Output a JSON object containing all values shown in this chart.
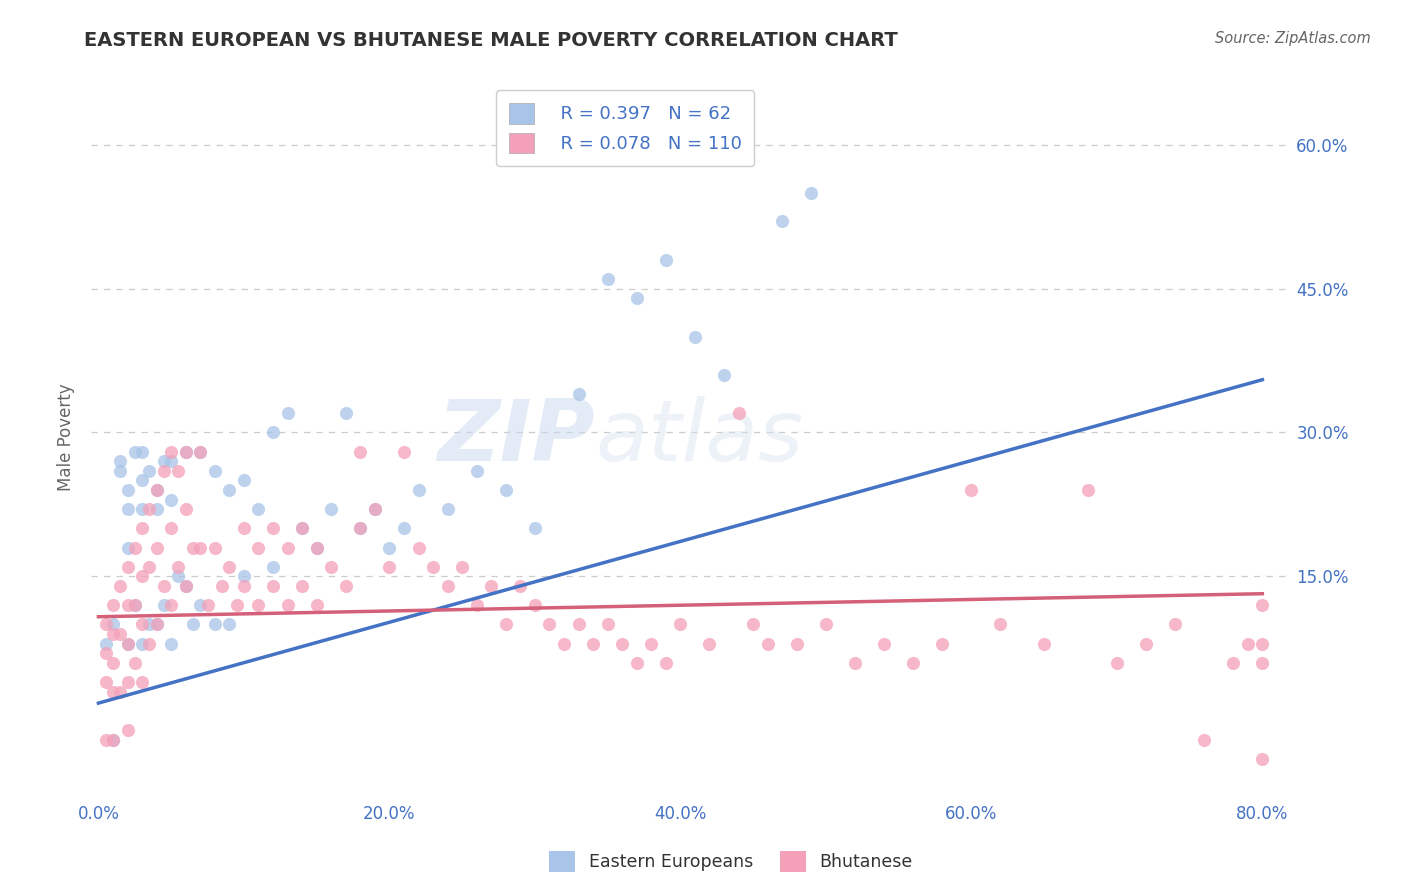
{
  "title": "EASTERN EUROPEAN VS BHUTANESE MALE POVERTY CORRELATION CHART",
  "source": "Source: ZipAtlas.com",
  "xlabel_ticks": [
    "0.0%",
    "20.0%",
    "40.0%",
    "60.0%",
    "80.0%"
  ],
  "xlabel_vals": [
    0.0,
    0.2,
    0.4,
    0.6,
    0.8
  ],
  "ylabel_ticks": [
    "15.0%",
    "30.0%",
    "45.0%",
    "60.0%"
  ],
  "ylabel_vals": [
    0.15,
    0.3,
    0.45,
    0.6
  ],
  "xlim": [
    -0.005,
    0.82
  ],
  "ylim": [
    -0.08,
    0.67
  ],
  "series1_label": "Eastern Europeans",
  "series1_color": "#a8c4e8",
  "series1_R": 0.397,
  "series1_N": 62,
  "series1_line_color": "#4472C4",
  "series1_x": [
    0.005,
    0.01,
    0.01,
    0.015,
    0.015,
    0.02,
    0.02,
    0.02,
    0.02,
    0.025,
    0.025,
    0.03,
    0.03,
    0.03,
    0.03,
    0.035,
    0.035,
    0.04,
    0.04,
    0.04,
    0.045,
    0.045,
    0.05,
    0.05,
    0.05,
    0.055,
    0.06,
    0.06,
    0.065,
    0.07,
    0.07,
    0.08,
    0.08,
    0.09,
    0.09,
    0.1,
    0.1,
    0.11,
    0.12,
    0.12,
    0.13,
    0.14,
    0.15,
    0.16,
    0.17,
    0.18,
    0.19,
    0.2,
    0.21,
    0.22,
    0.24,
    0.26,
    0.28,
    0.3,
    0.33,
    0.35,
    0.37,
    0.39,
    0.41,
    0.43,
    0.47,
    0.49
  ],
  "series1_y": [
    0.08,
    0.1,
    -0.02,
    0.27,
    0.26,
    0.24,
    0.22,
    0.18,
    0.08,
    0.28,
    0.12,
    0.28,
    0.25,
    0.22,
    0.08,
    0.26,
    0.1,
    0.24,
    0.22,
    0.1,
    0.27,
    0.12,
    0.27,
    0.23,
    0.08,
    0.15,
    0.28,
    0.14,
    0.1,
    0.28,
    0.12,
    0.26,
    0.1,
    0.24,
    0.1,
    0.25,
    0.15,
    0.22,
    0.3,
    0.16,
    0.32,
    0.2,
    0.18,
    0.22,
    0.32,
    0.2,
    0.22,
    0.18,
    0.2,
    0.24,
    0.22,
    0.26,
    0.24,
    0.2,
    0.34,
    0.46,
    0.44,
    0.48,
    0.4,
    0.36,
    0.52,
    0.55
  ],
  "series2_label": "Bhutanese",
  "series2_color": "#f4a0b8",
  "series2_R": 0.078,
  "series2_N": 110,
  "series2_line_color": "#d4607a",
  "series2_x": [
    0.005,
    0.005,
    0.005,
    0.005,
    0.01,
    0.01,
    0.01,
    0.01,
    0.01,
    0.015,
    0.015,
    0.015,
    0.02,
    0.02,
    0.02,
    0.02,
    0.02,
    0.025,
    0.025,
    0.025,
    0.03,
    0.03,
    0.03,
    0.03,
    0.035,
    0.035,
    0.035,
    0.04,
    0.04,
    0.04,
    0.045,
    0.045,
    0.05,
    0.05,
    0.05,
    0.055,
    0.055,
    0.06,
    0.06,
    0.06,
    0.065,
    0.07,
    0.07,
    0.075,
    0.08,
    0.085,
    0.09,
    0.095,
    0.1,
    0.1,
    0.11,
    0.11,
    0.12,
    0.12,
    0.13,
    0.13,
    0.14,
    0.14,
    0.15,
    0.15,
    0.16,
    0.17,
    0.18,
    0.18,
    0.19,
    0.2,
    0.21,
    0.22,
    0.23,
    0.24,
    0.25,
    0.26,
    0.27,
    0.28,
    0.29,
    0.3,
    0.31,
    0.32,
    0.33,
    0.34,
    0.35,
    0.36,
    0.37,
    0.38,
    0.39,
    0.4,
    0.42,
    0.44,
    0.45,
    0.46,
    0.48,
    0.5,
    0.52,
    0.54,
    0.56,
    0.58,
    0.6,
    0.62,
    0.65,
    0.68,
    0.7,
    0.72,
    0.74,
    0.76,
    0.78,
    0.79,
    0.8,
    0.8,
    0.8,
    0.8
  ],
  "series2_y": [
    0.1,
    0.07,
    0.04,
    -0.02,
    0.12,
    0.09,
    0.06,
    0.03,
    -0.02,
    0.14,
    0.09,
    0.03,
    0.16,
    0.12,
    0.08,
    0.04,
    -0.01,
    0.18,
    0.12,
    0.06,
    0.2,
    0.15,
    0.1,
    0.04,
    0.22,
    0.16,
    0.08,
    0.24,
    0.18,
    0.1,
    0.26,
    0.14,
    0.28,
    0.2,
    0.12,
    0.26,
    0.16,
    0.28,
    0.22,
    0.14,
    0.18,
    0.28,
    0.18,
    0.12,
    0.18,
    0.14,
    0.16,
    0.12,
    0.2,
    0.14,
    0.18,
    0.12,
    0.2,
    0.14,
    0.18,
    0.12,
    0.2,
    0.14,
    0.18,
    0.12,
    0.16,
    0.14,
    0.28,
    0.2,
    0.22,
    0.16,
    0.28,
    0.18,
    0.16,
    0.14,
    0.16,
    0.12,
    0.14,
    0.1,
    0.14,
    0.12,
    0.1,
    0.08,
    0.1,
    0.08,
    0.1,
    0.08,
    0.06,
    0.08,
    0.06,
    0.1,
    0.08,
    0.32,
    0.1,
    0.08,
    0.08,
    0.1,
    0.06,
    0.08,
    0.06,
    0.08,
    0.24,
    0.1,
    0.08,
    0.24,
    0.06,
    0.08,
    0.1,
    -0.02,
    0.06,
    0.08,
    0.12,
    0.08,
    -0.04,
    0.06
  ],
  "trend1_x0": 0.0,
  "trend1_y0": 0.018,
  "trend1_x1": 0.8,
  "trend1_y1": 0.355,
  "trend2_x0": 0.0,
  "trend2_y0": 0.108,
  "trend2_x1": 0.8,
  "trend2_y1": 0.132,
  "watermark_zip": "ZIP",
  "watermark_atlas": "atlas",
  "background_color": "#ffffff",
  "grid_color": "#cccccc",
  "axis_label_color": "#4472C4",
  "title_color": "#333333"
}
